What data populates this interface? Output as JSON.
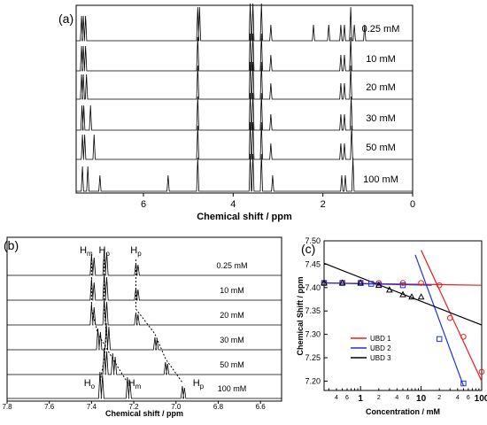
{
  "colors": {
    "ink": "#000000",
    "red": "#e8211e",
    "blue": "#2030e0",
    "dash": "#000000"
  },
  "chart_data": [
    {
      "panel": "(a)",
      "type": "line",
      "xlabel": "Chemical shift / ppm",
      "xlim": [
        7.5,
        0
      ],
      "x_ticks": [
        6,
        4,
        2,
        0
      ],
      "axis_reversed": true,
      "series": [
        {
          "name": "0.25 mM",
          "peaks": [
            7.38,
            7.34,
            7.29,
            4.79,
            4.75,
            3.62,
            3.56,
            3.37,
            3.16,
            2.21,
            1.87,
            1.6,
            1.52,
            1.38,
            1.3,
            1.07
          ]
        },
        {
          "name": "10 mM",
          "peaks": [
            7.38,
            7.34,
            7.29,
            4.79,
            3.62,
            3.56,
            3.37,
            3.16,
            1.6,
            1.52,
            1.38
          ]
        },
        {
          "name": "20 mM",
          "peaks": [
            7.38,
            7.34,
            7.27,
            4.79,
            3.62,
            3.56,
            3.37,
            3.16,
            1.6,
            1.52,
            1.38
          ]
        },
        {
          "name": "30 mM",
          "peaks": [
            7.37,
            7.33,
            7.18,
            4.79,
            3.62,
            3.56,
            3.37,
            3.16,
            1.6,
            1.52,
            1.37
          ]
        },
        {
          "name": "50 mM",
          "peaks": [
            7.36,
            7.31,
            7.1,
            4.79,
            3.62,
            3.56,
            3.37,
            3.16,
            1.6,
            1.52,
            1.36
          ]
        },
        {
          "name": "100 mM",
          "peaks": [
            7.36,
            7.24,
            6.97,
            5.45,
            4.79,
            3.62,
            3.56,
            3.37,
            3.12,
            1.58,
            1.5,
            1.33
          ]
        }
      ]
    },
    {
      "panel": "(b)",
      "type": "line",
      "xlabel": "Chemical shift / ppm",
      "xlim": [
        7.8,
        6.5
      ],
      "x_ticks": [
        7.8,
        7.6,
        7.4,
        7.2,
        7.0,
        6.8,
        6.6
      ],
      "axis_reversed": true,
      "peak_labels_top": [
        "H",
        "H",
        "H"
      ],
      "peak_label_subs_top": [
        "m",
        "o",
        "p"
      ],
      "peak_labels_bottom": [
        "H",
        "H",
        "H"
      ],
      "peak_label_subs_bottom": [
        "o",
        "m",
        "p"
      ],
      "series": [
        {
          "name": "0.25 mM",
          "Hm": 7.4,
          "Ho": 7.34,
          "Hp": 7.19
        },
        {
          "name": "10 mM",
          "Hm": 7.4,
          "Ho": 7.34,
          "Hp": 7.19
        },
        {
          "name": "20 mM",
          "Hm": 7.4,
          "Ho": 7.34,
          "Hp": 7.19
        },
        {
          "name": "30 mM",
          "Hm": 7.37,
          "Ho": 7.33,
          "Hp": 7.1
        },
        {
          "name": "50 mM",
          "Hm": 7.3,
          "Ho": 7.34,
          "Hp": 7.05
        },
        {
          "name": "100 mM",
          "Hm": 7.23,
          "Ho": 7.36,
          "Hp": 6.97
        }
      ]
    },
    {
      "panel": "(c)",
      "type": "scatter",
      "xlabel": "Concentration / mM",
      "ylabel": "Chemical Shift / ppm",
      "x_scale": "log",
      "xlim": [
        0.25,
        100
      ],
      "ylim": [
        7.18,
        7.5
      ],
      "x_tick_labels": [
        "1",
        "10",
        "100"
      ],
      "y_ticks": [
        7.2,
        7.25,
        7.3,
        7.35,
        7.4,
        7.45,
        7.5
      ],
      "y_tick_labels": [
        "7.20",
        "7.25",
        "7.30",
        "7.35",
        "7.40",
        "7.45",
        "7.50"
      ],
      "legend_position": "bottom-left",
      "series": [
        {
          "name": "UBD 1",
          "color": "#e8211e",
          "marker": "circle",
          "x": [
            0.25,
            0.5,
            1,
            2,
            5,
            10,
            20,
            30,
            50,
            100
          ],
          "y": [
            7.41,
            7.41,
            7.41,
            7.41,
            7.41,
            7.41,
            7.405,
            7.335,
            7.295,
            7.22
          ],
          "fit_lines": [
            {
              "x": [
                0.25,
                100
              ],
              "y": [
                7.41,
                7.405
              ]
            },
            {
              "x": [
                10,
                100
              ],
              "y": [
                7.48,
                7.2
              ]
            }
          ]
        },
        {
          "name": "UBD 2",
          "color": "#2030e0",
          "marker": "square",
          "x": [
            0.25,
            0.5,
            1,
            1.5,
            2,
            5,
            20,
            50
          ],
          "y": [
            7.41,
            7.41,
            7.41,
            7.408,
            7.406,
            7.405,
            7.29,
            7.195
          ],
          "fit_lines": [
            {
              "x": [
                0.25,
                15
              ],
              "y": [
                7.41,
                7.405
              ]
            },
            {
              "x": [
                8,
                50
              ],
              "y": [
                7.47,
                7.19
              ]
            }
          ]
        },
        {
          "name": "UBD 3",
          "color": "#000000",
          "marker": "triangle",
          "x": [
            0.25,
            0.5,
            1,
            2,
            3,
            5,
            7,
            10
          ],
          "y": [
            7.41,
            7.41,
            7.41,
            7.405,
            7.395,
            7.385,
            7.38,
            7.38
          ],
          "fit_lines": [
            {
              "x": [
                0.25,
                100
              ],
              "y": [
                7.452,
                7.32
              ]
            }
          ]
        }
      ]
    }
  ]
}
